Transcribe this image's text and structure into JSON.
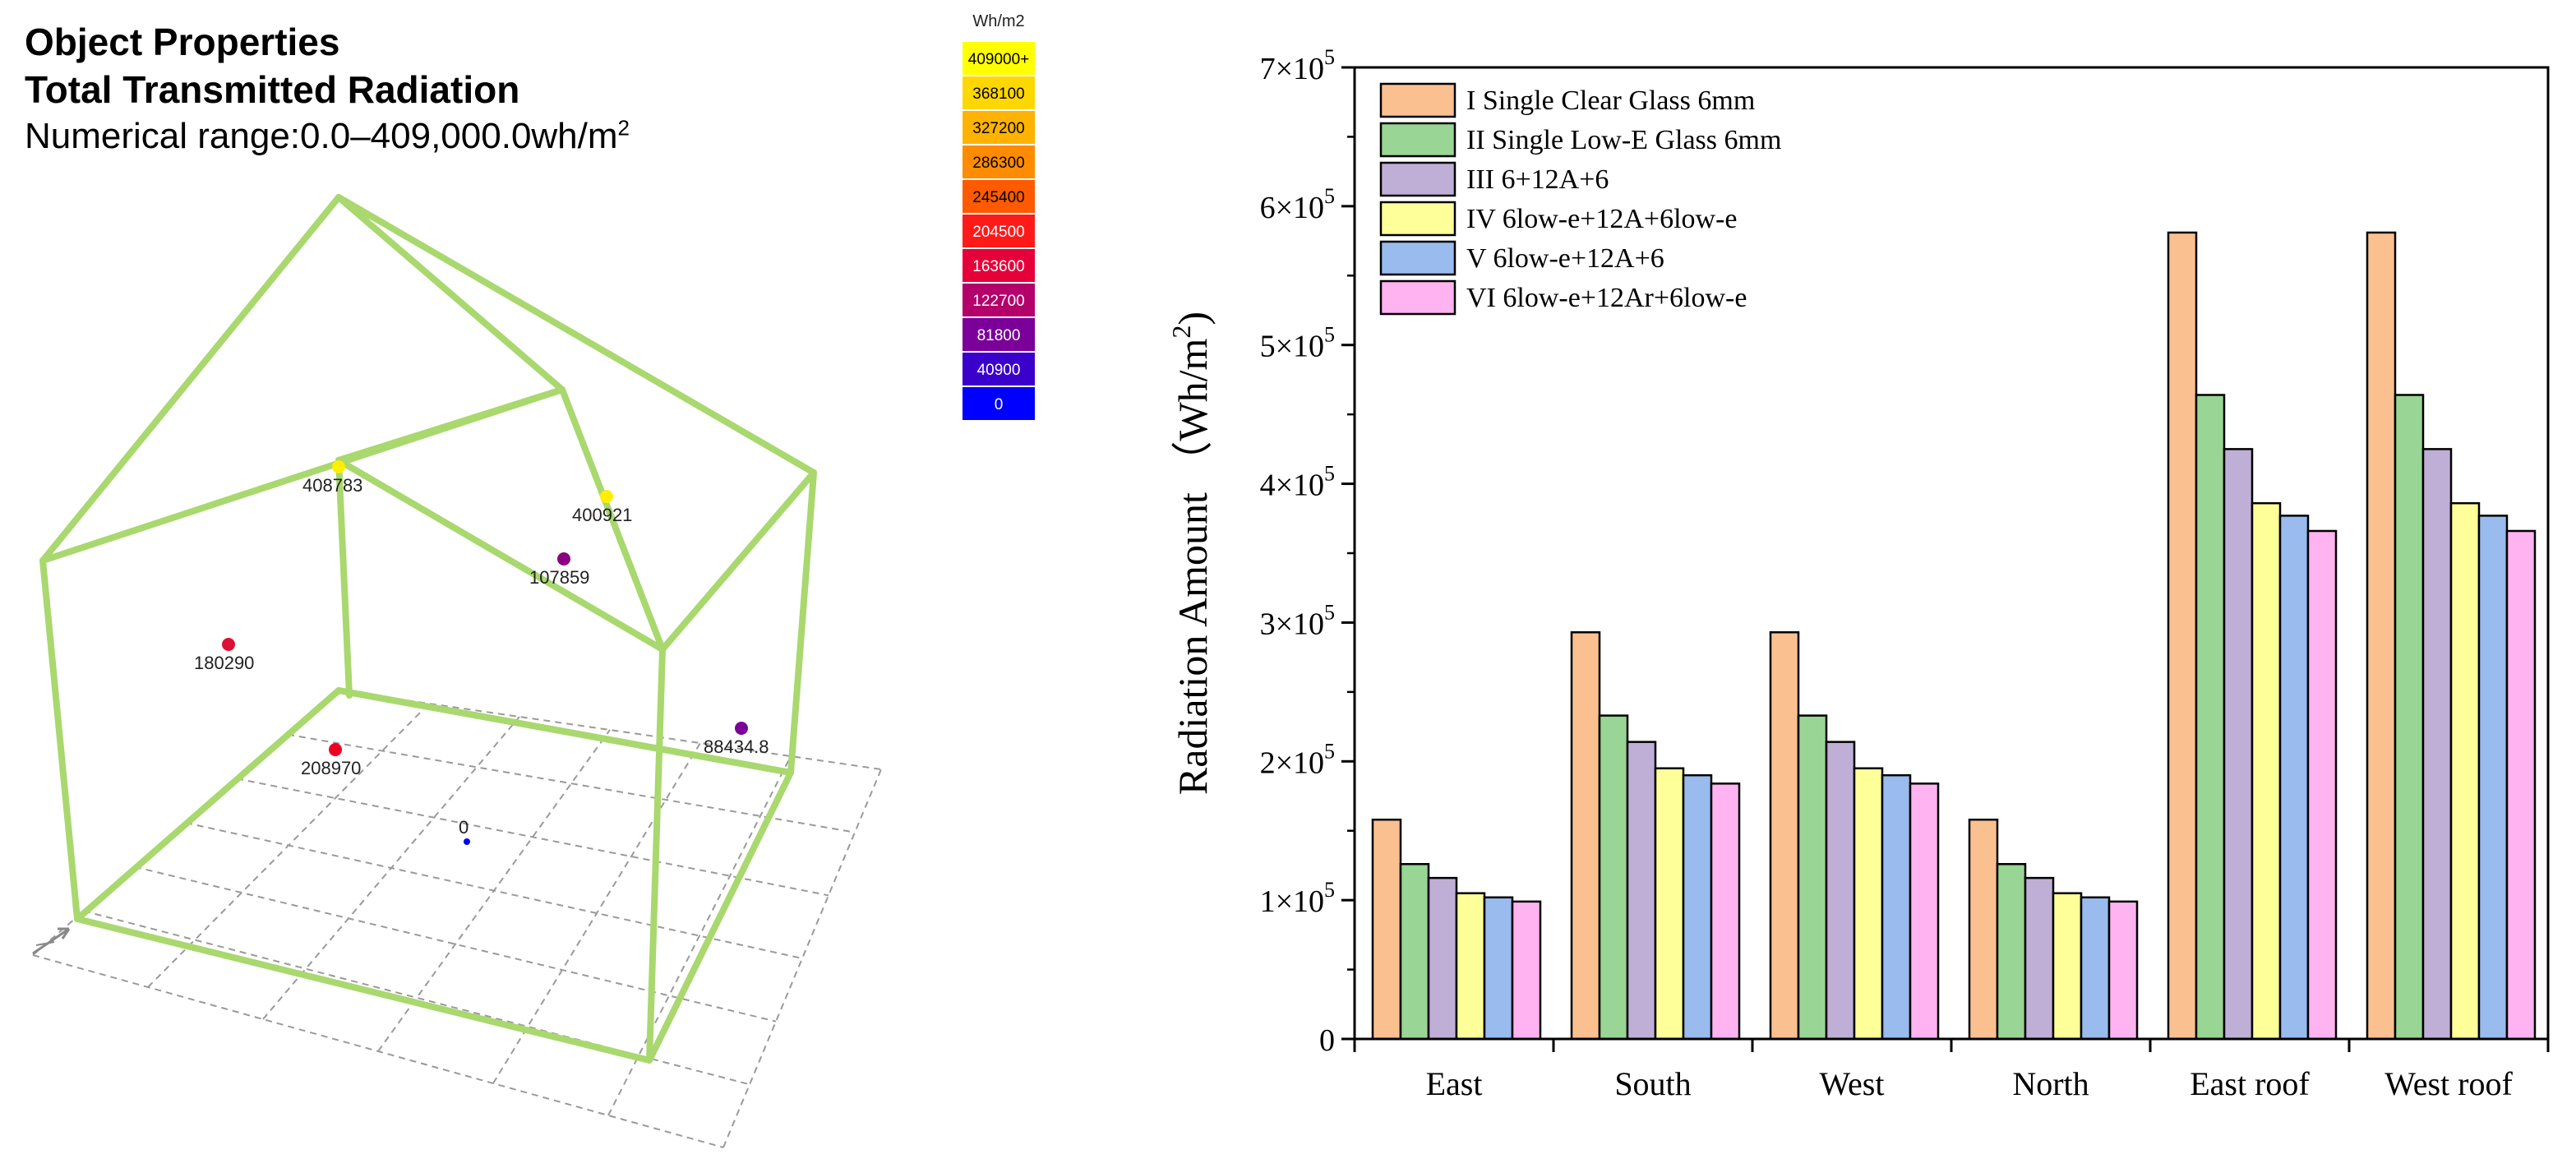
{
  "header": {
    "title_line1": "Object Properties",
    "title_line2": "Total Transmitted Radiation",
    "range_text": "Numerical range:0.0–409,000.0wh/m",
    "range_sup": "2"
  },
  "legend_scale": {
    "unit": "Wh/m2",
    "steps": [
      {
        "label": "409000+",
        "color": "#ffff00",
        "text_color": "#000000"
      },
      {
        "label": "368100",
        "color": "#ffd700",
        "text_color": "#000000"
      },
      {
        "label": "327200",
        "color": "#ffb300",
        "text_color": "#000000"
      },
      {
        "label": "286300",
        "color": "#ff8c00",
        "text_color": "#000000"
      },
      {
        "label": "245400",
        "color": "#ff5a00",
        "text_color": "#000000"
      },
      {
        "label": "204500",
        "color": "#ff1a1a",
        "text_color": "#ffffff"
      },
      {
        "label": "163600",
        "color": "#e6003a",
        "text_color": "#ffffff"
      },
      {
        "label": "122700",
        "color": "#b3006b",
        "text_color": "#ffffff"
      },
      {
        "label": "81800",
        "color": "#7a0099",
        "text_color": "#ffffff"
      },
      {
        "label": "40900",
        "color": "#3a00cc",
        "text_color": "#ffffff"
      },
      {
        "label": "0",
        "color": "#0000ff",
        "text_color": "#ffffff"
      }
    ]
  },
  "model_points": [
    {
      "label": "408783",
      "color": "#ffee00"
    },
    {
      "label": "400921",
      "color": "#ffee00"
    },
    {
      "label": "107859",
      "color": "#8b0080"
    },
    {
      "label": "180290",
      "color": "#dd1133"
    },
    {
      "label": "208970",
      "color": "#ee0022"
    },
    {
      "label": "88434.8",
      "color": "#7a0099"
    },
    {
      "label": "0",
      "color": "#0000ff"
    }
  ],
  "colors": {
    "frame": "#a9d86e",
    "grid": "#9a9a9a",
    "axis": "#000000"
  },
  "chart_data": {
    "type": "bar",
    "title": "",
    "xlabel": "",
    "ylabel": "Radiation Amount （Wh/m",
    "ylabel_sup": "2",
    "ylabel_close": ")",
    "ylim": [
      0,
      700000
    ],
    "yticks": [
      {
        "value": 0,
        "base": "0",
        "exp": ""
      },
      {
        "value": 100000,
        "base": "1×10",
        "exp": "5"
      },
      {
        "value": 200000,
        "base": "2×10",
        "exp": "5"
      },
      {
        "value": 300000,
        "base": "3×10",
        "exp": "5"
      },
      {
        "value": 400000,
        "base": "4×10",
        "exp": "5"
      },
      {
        "value": 500000,
        "base": "5×10",
        "exp": "5"
      },
      {
        "value": 600000,
        "base": "6×10",
        "exp": "5"
      },
      {
        "value": 700000,
        "base": "7×10",
        "exp": "5"
      }
    ],
    "categories": [
      "East",
      "South",
      "West",
      "North",
      "East roof",
      "West roof"
    ],
    "legend_position": "top-left",
    "series": [
      {
        "name": "I  Single Clear Glass 6mm",
        "color": "#fac090",
        "values": [
          158000,
          293000,
          293000,
          158000,
          581000,
          581000
        ]
      },
      {
        "name": "II  Single Low-E Glass 6mm",
        "color": "#99d594",
        "values": [
          126000,
          233000,
          233000,
          126000,
          464000,
          464000
        ]
      },
      {
        "name": "III  6+12A+6",
        "color": "#bfaed6",
        "values": [
          116000,
          214000,
          214000,
          116000,
          425000,
          425000
        ]
      },
      {
        "name": "IV  6low-e+12A+6low-e",
        "color": "#ffff99",
        "values": [
          105000,
          195000,
          195000,
          105000,
          386000,
          386000
        ]
      },
      {
        "name": "V  6low-e+12A+6",
        "color": "#99bbee",
        "values": [
          102000,
          190000,
          190000,
          102000,
          377000,
          377000
        ]
      },
      {
        "name": "VI  6low-e+12Ar+6low-e",
        "color": "#ffb3f0",
        "values": [
          99000,
          184000,
          184000,
          99000,
          366000,
          366000
        ]
      }
    ]
  }
}
